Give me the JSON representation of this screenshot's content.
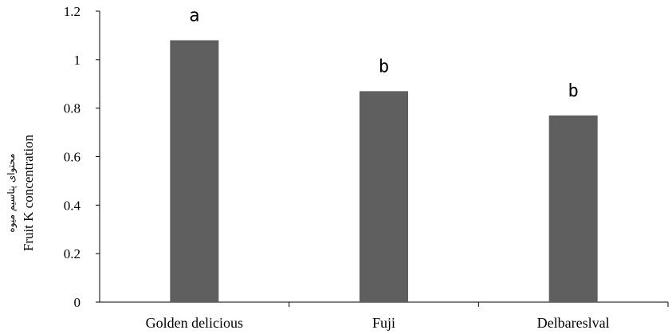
{
  "chart_data": {
    "type": "bar",
    "categories": [
      "Golden delicious",
      "Fuji",
      "Delbareslval"
    ],
    "values": [
      1.08,
      0.87,
      0.77
    ],
    "significance": [
      "a",
      "b",
      "b"
    ],
    "ylabel": "Fruit K concentration",
    "ylabel_fa": "محتوای پتاسیم میوه",
    "ylim": [
      0,
      1.2
    ],
    "yticks": [
      0,
      0.2,
      0.4,
      0.6,
      0.8,
      1,
      1.2
    ],
    "ytick_labels": [
      "0",
      "0.2",
      "0.4",
      "0.6",
      "0.8",
      "1",
      "1.2"
    ],
    "grid": false,
    "bar_color": "#5f5f5f"
  }
}
